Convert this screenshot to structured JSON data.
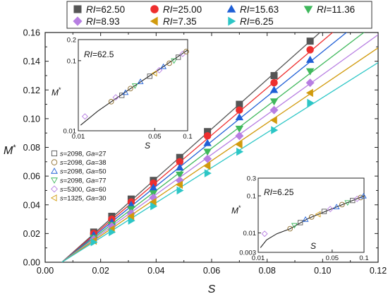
{
  "chart_data": {
    "main": {
      "type": "scatter",
      "xlabel": "S",
      "ylabel": "M*",
      "xlim": [
        0,
        0.12
      ],
      "ylim": [
        0,
        0.16
      ],
      "xticks": [
        "0.00",
        "0.02",
        "0.04",
        "0.06",
        "0.08",
        "0.10",
        "0.12"
      ],
      "yticks": [
        "0.00",
        "0.02",
        "0.04",
        "0.06",
        "0.08",
        "0.10",
        "0.12",
        "0.14",
        "0.16"
      ],
      "x": [
        0.0175,
        0.024,
        0.031,
        0.039,
        0.0485,
        0.0585,
        0.07,
        0.0825,
        0.0955
      ],
      "series": [
        {
          "name": "RI=62.50",
          "ri": "62.50",
          "color": "#555555",
          "marker": "square",
          "values": [
            0.021,
            0.032,
            0.044,
            0.057,
            0.073,
            0.091,
            0.11,
            0.13,
            0.154
          ],
          "fit_slope": 1.72
        },
        {
          "name": "RI=25.00",
          "ri": "25.00",
          "color": "#ee2e2e",
          "marker": "circle",
          "values": [
            0.02,
            0.03,
            0.042,
            0.055,
            0.07,
            0.088,
            0.106,
            0.125,
            0.148
          ],
          "fit_slope": 1.64
        },
        {
          "name": "RI=15.63",
          "ri": "15.63",
          "color": "#1f5fd6",
          "marker": "triangle-up",
          "values": [
            0.019,
            0.028,
            0.04,
            0.052,
            0.066,
            0.083,
            0.101,
            0.12,
            0.141
          ],
          "fit_slope": 1.56
        },
        {
          "name": "RI=11.36",
          "ri": "11.36",
          "color": "#3fb85c",
          "marker": "triangle-down",
          "values": [
            0.017,
            0.026,
            0.037,
            0.048,
            0.061,
            0.077,
            0.093,
            0.112,
            0.133
          ],
          "fit_slope": 1.47
        },
        {
          "name": "RI=8.93",
          "ri": "8.93",
          "color": "#b77ee2",
          "marker": "diamond",
          "values": [
            0.016,
            0.025,
            0.034,
            0.045,
            0.057,
            0.072,
            0.088,
            0.106,
            0.125
          ],
          "fit_slope": 1.39
        },
        {
          "name": "RI=7.35",
          "ri": "7.35",
          "color": "#d19a0c",
          "marker": "triangle-left",
          "values": [
            0.015,
            0.023,
            0.032,
            0.042,
            0.054,
            0.067,
            0.082,
            0.099,
            0.118
          ],
          "fit_slope": 1.31
        },
        {
          "name": "RI=6.25",
          "ri": "6.25",
          "color": "#2cc6c6",
          "marker": "triangle-right",
          "values": [
            0.014,
            0.021,
            0.029,
            0.039,
            0.05,
            0.062,
            0.077,
            0.092,
            0.111
          ],
          "fit_slope": 1.22
        }
      ],
      "fit_x0": 0.006
    },
    "legend_top": {
      "label_prefix": "RI",
      "entries": [
        "=62.50",
        "=25.00",
        "=15.63",
        "=11.36",
        "=8.93",
        "=7.35",
        "=6.25"
      ]
    },
    "legend_left": [
      {
        "label": "s=2098, Ga=27",
        "marker": "square"
      },
      {
        "label": "s=2098, Ga=38",
        "marker": "circle"
      },
      {
        "label": "s=2098, Ga=50",
        "marker": "triangle-up"
      },
      {
        "label": "s=2098, Ga=77",
        "marker": "triangle-down"
      },
      {
        "label": "s=5300, Ga=60",
        "marker": "diamond"
      },
      {
        "label": "s=1325, Ga=30",
        "marker": "triangle-left"
      }
    ],
    "insets": [
      {
        "type": "scatter",
        "scale": "log-log",
        "title": "RI=62.5",
        "xlabel": "S",
        "ylabel": "M*",
        "xlim": [
          0.01,
          0.1
        ],
        "ylim": [
          0.01,
          0.2
        ],
        "xticks": [
          0.01,
          0.05,
          0.1
        ],
        "xticklabels": [
          "0.01",
          "0.05",
          "0.1"
        ],
        "yticks": [
          0.01,
          0.1,
          0.2
        ],
        "yticklabels": [
          "0.01",
          "0.1",
          "0.2"
        ],
        "points": [
          [
            0.0115,
            0.016,
            "diamond"
          ],
          [
            0.02,
            0.026,
            "circle"
          ],
          [
            0.022,
            0.03,
            "diamond"
          ],
          [
            0.025,
            0.032,
            "square"
          ],
          [
            0.027,
            0.035,
            "triangle-up"
          ],
          [
            0.03,
            0.04,
            "circle"
          ],
          [
            0.033,
            0.044,
            "triangle-down"
          ],
          [
            0.037,
            0.05,
            "triangle-up"
          ],
          [
            0.045,
            0.06,
            "square"
          ],
          [
            0.05,
            0.066,
            "triangle-left"
          ],
          [
            0.055,
            0.073,
            "diamond"
          ],
          [
            0.06,
            0.082,
            "triangle-up"
          ],
          [
            0.068,
            0.092,
            "circle"
          ],
          [
            0.075,
            0.1,
            "triangle-down"
          ],
          [
            0.082,
            0.112,
            "square"
          ],
          [
            0.09,
            0.125,
            "diamond"
          ],
          [
            0.097,
            0.135,
            "circle"
          ]
        ],
        "curve": [
          [
            0.0105,
            0.012
          ],
          [
            0.015,
            0.019
          ],
          [
            0.02,
            0.026
          ],
          [
            0.03,
            0.04
          ],
          [
            0.05,
            0.068
          ],
          [
            0.07,
            0.097
          ],
          [
            0.1,
            0.142
          ]
        ]
      },
      {
        "type": "scatter",
        "scale": "log-log",
        "title": "RI=6.25",
        "xlabel": "S",
        "ylabel": "M*",
        "xlim": [
          0.01,
          0.1
        ],
        "ylim": [
          0.003,
          0.3
        ],
        "xticks": [
          0.01,
          0.05,
          0.1
        ],
        "xticklabels": [
          "0.01",
          "0.05",
          "0.1"
        ],
        "yticks": [
          0.003,
          0.01,
          0.1,
          0.3
        ],
        "yticklabels": [
          "0.003",
          "0.01",
          "0.1",
          "0.3"
        ],
        "points": [
          [
            0.0115,
            0.0095,
            "diamond"
          ],
          [
            0.02,
            0.013,
            "circle"
          ],
          [
            0.022,
            0.016,
            "triangle-down"
          ],
          [
            0.025,
            0.019,
            "square"
          ],
          [
            0.028,
            0.023,
            "triangle-up"
          ],
          [
            0.032,
            0.027,
            "circle"
          ],
          [
            0.037,
            0.032,
            "triangle-left"
          ],
          [
            0.042,
            0.038,
            "square"
          ],
          [
            0.048,
            0.044,
            "diamond"
          ],
          [
            0.055,
            0.05,
            "triangle-up"
          ],
          [
            0.062,
            0.058,
            "circle"
          ],
          [
            0.07,
            0.066,
            "triangle-down"
          ],
          [
            0.078,
            0.075,
            "square"
          ],
          [
            0.086,
            0.083,
            "diamond"
          ],
          [
            0.093,
            0.09,
            "circle"
          ],
          [
            0.099,
            0.098,
            "triangle-up"
          ]
        ],
        "curve": [
          [
            0.0105,
            0.004
          ],
          [
            0.012,
            0.0065
          ],
          [
            0.015,
            0.0095
          ],
          [
            0.02,
            0.013
          ],
          [
            0.03,
            0.025
          ],
          [
            0.05,
            0.045
          ],
          [
            0.07,
            0.066
          ],
          [
            0.1,
            0.1
          ]
        ]
      }
    ]
  }
}
